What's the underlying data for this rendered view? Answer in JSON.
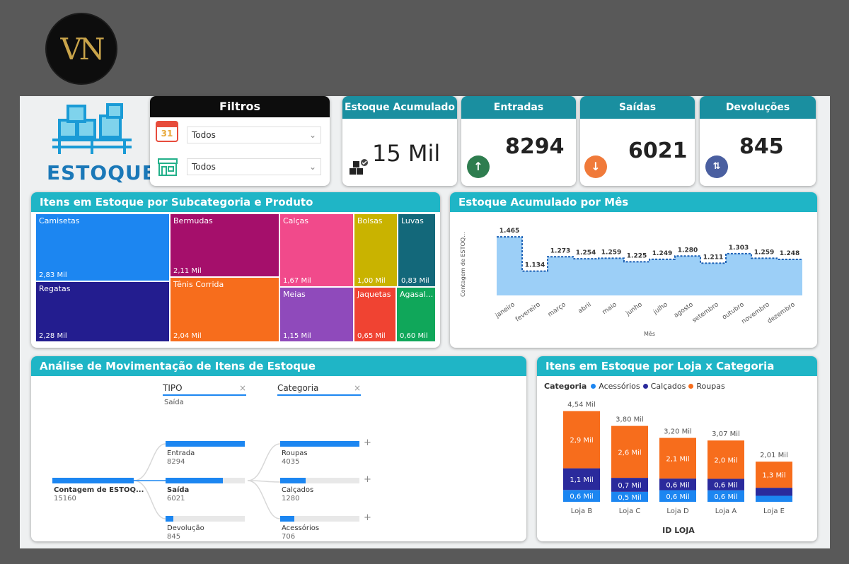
{
  "logo": {
    "text": "VN"
  },
  "brand": {
    "title": "ESTOQUE"
  },
  "filters": {
    "title": "Filtros",
    "date_value": "Todos",
    "date_icon_text": "31",
    "store_value": "Todos"
  },
  "kpis": [
    {
      "title": "Estoque Acumulado",
      "value": "15 Mil"
    },
    {
      "title": "Entradas",
      "value": "8294"
    },
    {
      "title": "Saídas",
      "value": "6021"
    },
    {
      "title": "Devoluções",
      "value": "845"
    }
  ],
  "colors": {
    "teal": "#1fb5c6",
    "teal_dark": "#1a8fa0",
    "blue": "#1c86f1",
    "navy": "#2a2a9c",
    "orange": "#f76d1c"
  },
  "treemap": {
    "title": "Itens em Estoque por Subcategoria e Produto",
    "items": [
      {
        "label": "Camisetas",
        "value": "2,83 Mil",
        "color": "#1c86f1"
      },
      {
        "label": "Regatas",
        "value": "2,28 Mil",
        "color": "#231d8f"
      },
      {
        "label": "Bermudas",
        "value": "2,11 Mil",
        "color": "#a50f6b"
      },
      {
        "label": "Tênis Corrida",
        "value": "2,04 Mil",
        "color": "#f76d1c"
      },
      {
        "label": "Calças",
        "value": "1,67 Mil",
        "color": "#f14a8b"
      },
      {
        "label": "Meias",
        "value": "1,15 Mil",
        "color": "#8f4abb"
      },
      {
        "label": "Bolsas",
        "value": "1,00 Mil",
        "color": "#c9b300"
      },
      {
        "label": "Jaquetas",
        "value": "0,65 Mil",
        "color": "#f04332"
      },
      {
        "label": "Luvas",
        "value": "0,83 Mil",
        "color": "#13687a"
      },
      {
        "label": "Agasal...",
        "value": "0,60 Mil",
        "color": "#10a75a"
      }
    ]
  },
  "area_chart": {
    "title": "Estoque Acumulado por Mês",
    "ylabel": "Contagem de ESTOQ...",
    "xlabel": "Mês"
  },
  "decomp": {
    "title": "Análise de Movimentação de Itens de Estoque",
    "col1_title": "TIPO",
    "col1_sub": "Saída",
    "col2_title": "Categoria",
    "close_glyph": "×",
    "plus_glyph": "+",
    "root": {
      "label": "Contagem de ESTOQ...",
      "value": "15160"
    },
    "tipos": [
      {
        "label": "Entrada",
        "value": "8294",
        "frac": 1.0,
        "bold": false
      },
      {
        "label": "Saída",
        "value": "6021",
        "frac": 0.726,
        "bold": true
      },
      {
        "label": "Devolução",
        "value": "845",
        "frac": 0.102,
        "bold": false
      }
    ],
    "cats": [
      {
        "label": "Roupas",
        "value": "4035",
        "frac": 1.0
      },
      {
        "label": "Calçados",
        "value": "1280",
        "frac": 0.317
      },
      {
        "label": "Acessórios",
        "value": "706",
        "frac": 0.175
      }
    ]
  },
  "stacked": {
    "title": "Itens em Estoque por Loja x Categoria",
    "legend_title": "Categoria",
    "xlabel": "ID LOJA"
  },
  "chart_data": [
    {
      "type": "area",
      "title": "Estoque Acumulado por Mês",
      "xlabel": "Mês",
      "ylabel": "Contagem de ESTOQ...",
      "categories": [
        "janeiro",
        "fevereiro",
        "março",
        "abril",
        "maio",
        "junho",
        "julho",
        "agosto",
        "setembro",
        "outubro",
        "novembro",
        "dezembro"
      ],
      "values": [
        1465,
        1134,
        1273,
        1254,
        1259,
        1225,
        1249,
        1280,
        1211,
        1303,
        1259,
        1248
      ],
      "labels": [
        "1.465",
        "1.134",
        "1.273",
        "1.254",
        "1.259",
        "1.225",
        "1.249",
        "1.280",
        "1.211",
        "1.303",
        "1.259",
        "1.248"
      ]
    },
    {
      "type": "bar",
      "stacked": true,
      "title": "Itens em Estoque por Loja x Categoria",
      "xlabel": "ID LOJA",
      "categories": [
        "Loja B",
        "Loja C",
        "Loja D",
        "Loja A",
        "Loja E"
      ],
      "totals": [
        "4,54 Mil",
        "3,80 Mil",
        "3,20 Mil",
        "3,07 Mil",
        "2,01 Mil"
      ],
      "total_values": [
        4.54,
        3.8,
        3.2,
        3.07,
        2.01
      ],
      "series": [
        {
          "name": "Acessórios",
          "color": "#1c86f1",
          "values": [
            0.6,
            0.5,
            0.6,
            0.6,
            0.3
          ],
          "labels": [
            "0,6 Mil",
            "0,5 Mil",
            "0,6 Mil",
            "0,6 Mil",
            ""
          ]
        },
        {
          "name": "Calçados",
          "color": "#2a2a9c",
          "values": [
            1.1,
            0.7,
            0.6,
            0.6,
            0.4
          ],
          "labels": [
            "1,1 Mil",
            "0,7 Mil",
            "0,6 Mil",
            "0,6 Mil",
            ""
          ]
        },
        {
          "name": "Roupas",
          "color": "#f76d1c",
          "values": [
            2.9,
            2.6,
            2.1,
            2.0,
            1.3
          ],
          "labels": [
            "2,9 Mil",
            "2,6 Mil",
            "2,1 Mil",
            "2,0 Mil",
            "1,3 Mil"
          ]
        }
      ]
    }
  ]
}
